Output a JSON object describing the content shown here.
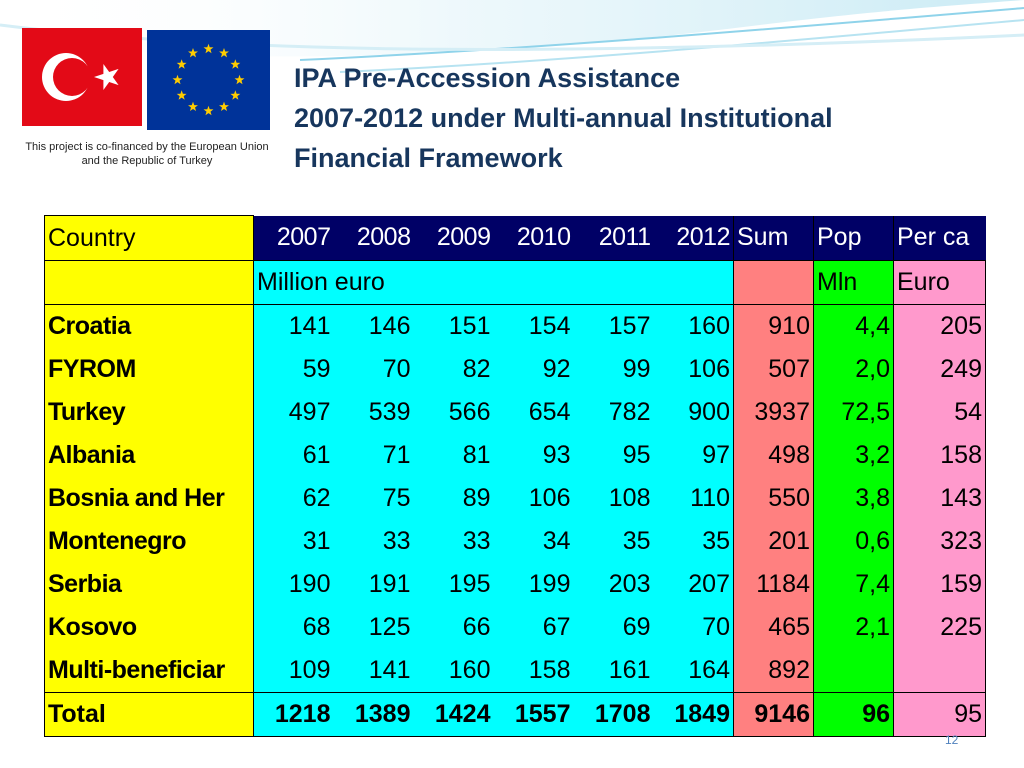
{
  "cofinanced_text": "This project is co-financed by the European Union and the Republic of Turkey",
  "title_lines": [
    "IPA Pre-Accession Assistance",
    "2007-2012 under Multi-annual Institutional",
    "Financial Framework"
  ],
  "colors": {
    "title": "#17365d",
    "header_bg": "#000066",
    "country_col": "#ffff00",
    "years_col": "#00ffff",
    "sum_col": "#ff8080",
    "pop_col": "#00ff00",
    "per_capita_col": "#ff99cc"
  },
  "icons": [
    "turkey-flag-icon",
    "eu-flag-icon"
  ],
  "table": {
    "headers": [
      "Country",
      "2007",
      "2008",
      "2009",
      "2010",
      "2011",
      "2012",
      "Sum",
      "Pop",
      "Per ca"
    ],
    "units": {
      "money": "Million euro",
      "pop": "Mln",
      "per_capita": "Euro"
    },
    "rows": [
      {
        "country": "Croatia",
        "years": [
          "141",
          "146",
          "151",
          "154",
          "157",
          "160"
        ],
        "sum": "910",
        "pop": "4,4",
        "per_capita": "205"
      },
      {
        "country": "FYROM",
        "years": [
          "59",
          "70",
          "82",
          "92",
          "99",
          "106"
        ],
        "sum": "507",
        "pop": "2,0",
        "per_capita": "249"
      },
      {
        "country": "Turkey",
        "years": [
          "497",
          "539",
          "566",
          "654",
          "782",
          "900"
        ],
        "sum": "3937",
        "pop": "72,5",
        "per_capita": "54"
      },
      {
        "country": "Albania",
        "years": [
          "61",
          "71",
          "81",
          "93",
          "95",
          "97"
        ],
        "sum": "498",
        "pop": "3,2",
        "per_capita": "158"
      },
      {
        "country": "Bosnia and Her",
        "years": [
          "62",
          "75",
          "89",
          "106",
          "108",
          "110"
        ],
        "sum": "550",
        "pop": "3,8",
        "per_capita": "143"
      },
      {
        "country": "Montenegro",
        "years": [
          "31",
          "33",
          "33",
          "34",
          "35",
          "35"
        ],
        "sum": "201",
        "pop": "0,6",
        "per_capita": "323"
      },
      {
        "country": "Serbia",
        "years": [
          "190",
          "191",
          "195",
          "199",
          "203",
          "207"
        ],
        "sum": "1184",
        "pop": "7,4",
        "per_capita": "159"
      },
      {
        "country": "Kosovo",
        "years": [
          "68",
          "125",
          "66",
          "67",
          "69",
          "70"
        ],
        "sum": "465",
        "pop": "2,1",
        "per_capita": "225"
      },
      {
        "country": "Multi-beneficiar",
        "years": [
          "109",
          "141",
          "160",
          "158",
          "161",
          "164"
        ],
        "sum": "892",
        "pop": "",
        "per_capita": ""
      }
    ],
    "total": {
      "label": "Total",
      "years": [
        "1218",
        "1389",
        "1424",
        "1557",
        "1708",
        "1849"
      ],
      "sum": "9146",
      "pop": "96",
      "per_capita": "95"
    }
  },
  "page_number": "12"
}
